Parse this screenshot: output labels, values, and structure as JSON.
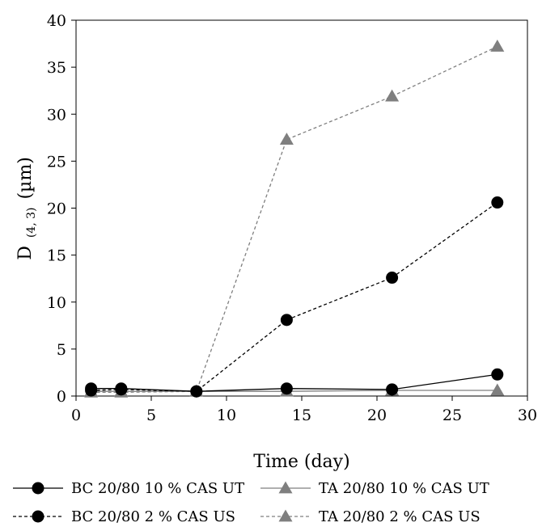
{
  "chart_data": {
    "type": "line",
    "xlabel": "Time (day)",
    "ylabel_main": "D",
    "ylabel_sub": "(4, 3)",
    "ylabel_unit": "(µm)",
    "xlim": [
      0,
      30
    ],
    "ylim": [
      0,
      40
    ],
    "xticks": [
      0,
      5,
      10,
      15,
      20,
      25,
      30
    ],
    "yticks": [
      0,
      5,
      10,
      15,
      20,
      25,
      30,
      35,
      40
    ],
    "grid": false,
    "legend_position": "bottom",
    "series": [
      {
        "name": "BC 20/80 10 % CAS UT",
        "marker": "circle",
        "line_style": "solid",
        "line_color": "#000000",
        "marker_color": "#000000",
        "x": [
          1,
          3,
          8,
          14,
          21,
          28
        ],
        "y": [
          0.8,
          0.8,
          0.5,
          0.8,
          0.7,
          2.3
        ]
      },
      {
        "name": "TA 20/80 10 % CAS UT",
        "marker": "triangle",
        "line_style": "solid",
        "line_color": "#7f7f7f",
        "marker_color": "#7f7f7f",
        "x": [
          1,
          3,
          8,
          14,
          21,
          28
        ],
        "y": [
          0.5,
          0.5,
          0.5,
          0.5,
          0.6,
          0.6
        ]
      },
      {
        "name": "BC 20/80 2 % CAS US",
        "marker": "circle",
        "line_style": "dashed",
        "line_color": "#000000",
        "marker_color": "#000000",
        "x": [
          1,
          3,
          8,
          14,
          21,
          28
        ],
        "y": [
          0.6,
          0.7,
          0.5,
          8.1,
          12.6,
          20.6
        ]
      },
      {
        "name": "TA 20/80 2 % CAS US",
        "marker": "triangle",
        "line_style": "dashed",
        "line_color": "#7f7f7f",
        "marker_color": "#7f7f7f",
        "x": [
          1,
          3,
          8,
          14,
          21,
          28
        ],
        "y": [
          0.4,
          0.4,
          0.5,
          27.3,
          31.9,
          37.2
        ]
      }
    ]
  }
}
